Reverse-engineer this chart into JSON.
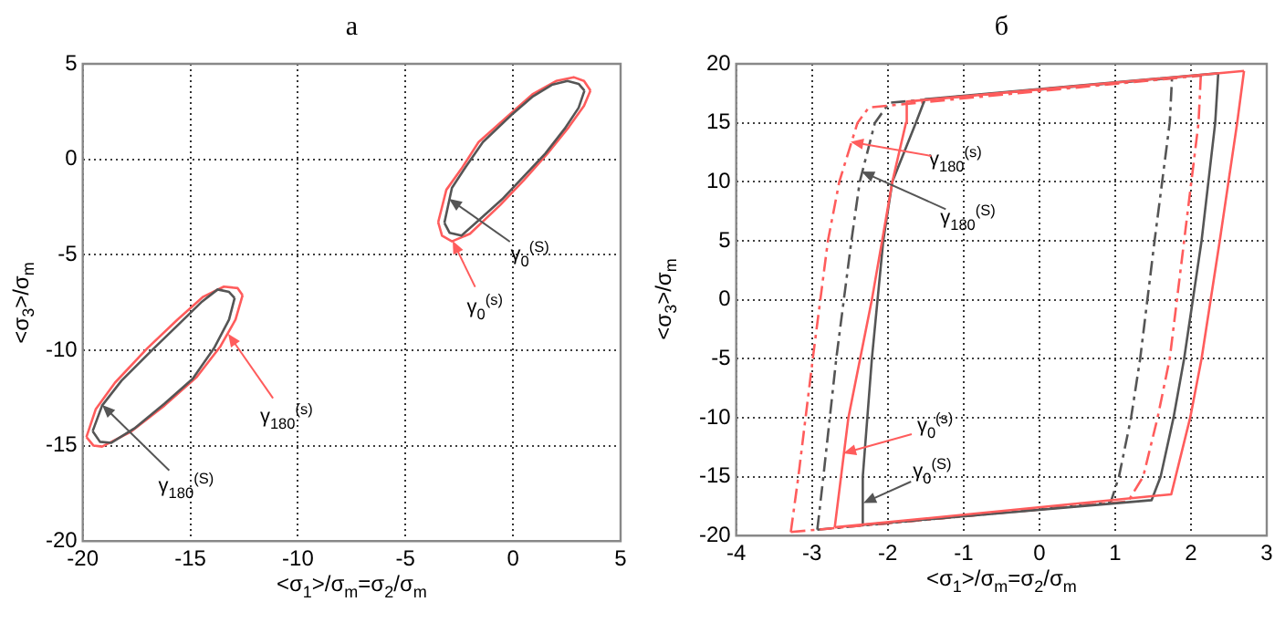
{
  "chart_data": [
    {
      "type": "line",
      "title": "а",
      "xlabel": "<σ$_{1}$>/σ$_{m}$=σ$_{2}$/σ$_{m}$",
      "ylabel": "<σ$_{3}$>/σ$_{m}$",
      "xlim": [
        -20,
        5
      ],
      "ylim": [
        -20,
        5
      ],
      "xticks": [
        -20,
        -15,
        -10,
        -5,
        0,
        5
      ],
      "yticks": [
        -20,
        -15,
        -10,
        -5,
        0,
        5
      ],
      "grid": true,
      "legend": false,
      "marker": "none",
      "series": [
        {
          "color": "#555555",
          "line_style": "solid",
          "x": [
            -3.19,
            -2.84,
            -2.2,
            -1.4,
            0,
            0.93,
            1.8,
            2.53,
            3.05,
            3.32
          ],
          "values": [
            -3.33,
            -1.5,
            -0.4,
            0.9,
            2.4,
            3.3,
            3.9,
            4.1,
            3.95,
            3.6
          ]
        },
        {
          "color": "#555555",
          "line_style": "solid",
          "x": [
            -3.19,
            -2.95,
            -2.4,
            -1.5,
            -0.51,
            0.5,
            1.5,
            2.4,
            3.05,
            3.32
          ],
          "values": [
            -3.33,
            -3.85,
            -4.0,
            -3.1,
            -2.1,
            -0.9,
            0.3,
            1.6,
            2.7,
            3.6
          ]
        },
        {
          "color": "#ff5c5c",
          "line_style": "solid",
          "x": [
            -3.48,
            -3.1,
            -2.4,
            -1.6,
            0,
            0.9,
            2.0,
            2.82,
            3.3,
            3.6
          ],
          "values": [
            -3.3,
            -1.6,
            -0.5,
            0.9,
            2.5,
            3.4,
            4.1,
            4.3,
            4.1,
            3.6
          ]
        },
        {
          "color": "#ff5c5c",
          "line_style": "solid",
          "x": [
            -3.48,
            -3.3,
            -2.84,
            -2.0,
            -0.6,
            0.5,
            1.6,
            2.6,
            3.3,
            3.6
          ],
          "values": [
            -3.3,
            -4.0,
            -4.3,
            -3.9,
            -2.4,
            -1.1,
            0.3,
            1.7,
            2.8,
            3.6
          ]
        },
        {
          "color": "#555555",
          "line_style": "solid",
          "x": [
            -19.54,
            -19.1,
            -18.2,
            -16.78,
            -15.5,
            -14.5,
            -13.73,
            -13.2,
            -12.94
          ],
          "values": [
            -14.24,
            -12.9,
            -11.6,
            -10,
            -8.6,
            -7.5,
            -6.82,
            -6.95,
            -7.27
          ]
        },
        {
          "color": "#555555",
          "line_style": "solid",
          "x": [
            -19.54,
            -19.2,
            -18.67,
            -17.6,
            -16.2,
            -14.89,
            -13.9,
            -13.2,
            -12.94
          ],
          "values": [
            -14.24,
            -14.8,
            -14.85,
            -14.1,
            -12.8,
            -11.5,
            -9.9,
            -8.4,
            -7.27
          ]
        },
        {
          "color": "#ff5c5c",
          "line_style": "solid",
          "x": [
            -19.83,
            -19.4,
            -18.5,
            -17.0,
            -15.6,
            -14.4,
            -13.44,
            -12.8,
            -12.57
          ],
          "values": [
            -14.55,
            -13.1,
            -11.7,
            -9.9,
            -8.4,
            -7.2,
            -6.67,
            -6.75,
            -7.12
          ]
        },
        {
          "color": "#ff5c5c",
          "line_style": "solid",
          "x": [
            -19.83,
            -19.5,
            -19.1,
            -17.8,
            -16.2,
            -14.7,
            -13.6,
            -12.9,
            -12.57
          ],
          "values": [
            -14.55,
            -15.0,
            -15.05,
            -14.3,
            -12.9,
            -11.4,
            -9.8,
            -8.4,
            -7.12
          ]
        }
      ],
      "annotations": [
        {
          "text": "γ$_{0}$$^{(S)}$",
          "x": -2.95,
          "y": -2.07
        },
        {
          "text": "γ$_{0}$$^{(s)}$",
          "x": -2.84,
          "y": -4.3
        },
        {
          "text": "γ$_{180}$$^{(S)}$",
          "x": -19.1,
          "y": -12.9
        },
        {
          "text": "γ$_{180}$$^{(s)}$",
          "x": -13.25,
          "y": -9.1
        }
      ]
    },
    {
      "type": "line",
      "title": "б",
      "xlabel": "<σ$_{1}$>/σ$_{m}$=σ$_{2}$/σ$_{m}$",
      "ylabel": "<σ$_{3}$>/σ$_{m}$",
      "xlim": [
        -4,
        3
      ],
      "ylim": [
        -20,
        20
      ],
      "xticks": [
        -4,
        -3,
        -2,
        -1,
        0,
        1,
        2,
        3
      ],
      "yticks": [
        -20,
        -15,
        -10,
        -5,
        0,
        5,
        10,
        15,
        20
      ],
      "grid": true,
      "legend": false,
      "marker": "none",
      "series": [
        {
          "color": "#ff5c5c",
          "line_style": "solid",
          "x": [
            -2.7,
            -2.52,
            -2.21,
            -1.94,
            -1.76,
            -1.75,
            2.7
          ],
          "values": [
            -19.3,
            -10,
            0,
            10,
            15,
            16.8,
            19.4
          ]
        },
        {
          "color": "#ff5c5c",
          "line_style": "solid",
          "x": [
            -2.7,
            1.74,
            1.99,
            2.14,
            2.38,
            2.61,
            2.7
          ],
          "values": [
            -19.3,
            -16.5,
            -10,
            -5,
            5,
            15,
            19.4
          ]
        },
        {
          "color": "#555555",
          "line_style": "solid",
          "x": [
            -2.34,
            -2.33,
            -2.21,
            -2.06,
            -1.94,
            -1.63,
            -1.51,
            2.36
          ],
          "values": [
            -19.1,
            -15,
            -5,
            5,
            10,
            15,
            17,
            19.2
          ]
        },
        {
          "color": "#555555",
          "line_style": "solid",
          "x": [
            -2.34,
            1.48,
            1.6,
            1.77,
            1.91,
            2.14,
            2.32,
            2.36
          ],
          "values": [
            -19.1,
            -17,
            -15,
            -10,
            -5,
            5,
            15,
            19.2
          ]
        },
        {
          "color": "#ff5c5c",
          "line_style": "dashed",
          "x": [
            -3.28,
            -3.18,
            -2.99,
            -2.79,
            -2.64,
            -2.4,
            -2.25,
            2.13
          ],
          "values": [
            -19.7,
            -15,
            -5,
            5,
            10,
            15,
            16.3,
            19.0
          ]
        },
        {
          "color": "#ff5c5c",
          "line_style": "dashed",
          "x": [
            -3.28,
            1.17,
            1.37,
            1.56,
            1.72,
            1.91,
            2.1,
            2.13
          ],
          "values": [
            -19.7,
            -17.1,
            -15,
            -10,
            -5,
            5,
            15,
            19.0
          ]
        },
        {
          "color": "#555555",
          "line_style": "dashed",
          "x": [
            -2.93,
            -2.85,
            -2.68,
            -2.48,
            -2.37,
            -2.17,
            -1.98,
            1.75
          ],
          "values": [
            -19.5,
            -15,
            -5,
            5,
            10,
            15,
            16.7,
            18.8
          ]
        },
        {
          "color": "#555555",
          "line_style": "dashed",
          "x": [
            -2.93,
            0.94,
            1.05,
            1.21,
            1.33,
            1.52,
            1.72,
            1.75
          ],
          "values": [
            -19.5,
            -17.2,
            -15,
            -10,
            -5,
            5,
            15,
            18.8
          ]
        }
      ],
      "annotations": [
        {
          "text": "γ$_{0}$$^{(s)}$",
          "x": -2.58,
          "y": -13.0
        },
        {
          "text": "γ$_{0}$$^{(S)}$",
          "x": -2.33,
          "y": -17.3
        },
        {
          "text": "γ$_{180}$$^{(s)}$",
          "x": -2.48,
          "y": 13.4
        },
        {
          "text": "γ$_{180}$$^{(S)}$",
          "x": -2.34,
          "y": 10.8
        }
      ]
    }
  ]
}
